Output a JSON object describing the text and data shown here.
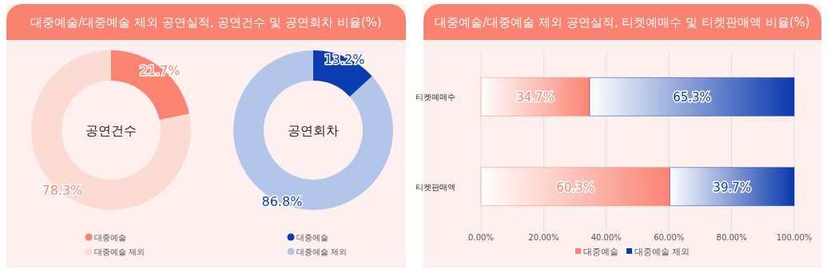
{
  "chart_data": [
    {
      "type": "donut",
      "title": "대중예술/대중예술 제외 공연실적, 공연건수 및 공연회차 비율(%)",
      "annotations": [
        "공연건수"
      ],
      "categories": [
        "대중예술",
        "대중예술 제외"
      ],
      "values": [
        21.7,
        78.3
      ],
      "colors": [
        "#fa8372",
        "#fddbd5"
      ],
      "value_labels": [
        "21.7%",
        "78.3%"
      ],
      "legend": "bottom"
    },
    {
      "type": "donut",
      "annotations": [
        "공연회차"
      ],
      "categories": [
        "대중예술",
        "대중예술 제외"
      ],
      "values": [
        13.2,
        86.8
      ],
      "colors": [
        "#0a3db0",
        "#b3c6e9"
      ],
      "value_labels": [
        "13.2%",
        "86.8%"
      ],
      "legend": "bottom"
    },
    {
      "type": "bar",
      "orientation": "horizontal",
      "stacked": true,
      "title": "대중예술/대중예술 제외 공연실적, 티켓예매수 및 티켓판매액 비율(%)",
      "categories": [
        "티켓예매수",
        "티켓판매액"
      ],
      "series": [
        {
          "name": "대중예술",
          "color": "#fa8372",
          "values": [
            34.7,
            60.3
          ],
          "value_labels": [
            "34.7%",
            "60.3%"
          ]
        },
        {
          "name": "대중예술 제외",
          "color": "#0838ad",
          "values": [
            65.3,
            39.7
          ],
          "value_labels": [
            "65.3%",
            "39.7%"
          ]
        }
      ],
      "xlim": [
        0,
        100
      ],
      "xticks": [
        {
          "value": 0,
          "label": "0.00%"
        },
        {
          "value": 20,
          "label": "20.00%"
        },
        {
          "value": 40,
          "label": "40.00%"
        },
        {
          "value": 60,
          "label": "60.00%"
        },
        {
          "value": 80,
          "label": "80.00%"
        },
        {
          "value": 100,
          "label": "100.00%"
        }
      ],
      "grid": "x",
      "legend": "bottom"
    }
  ]
}
